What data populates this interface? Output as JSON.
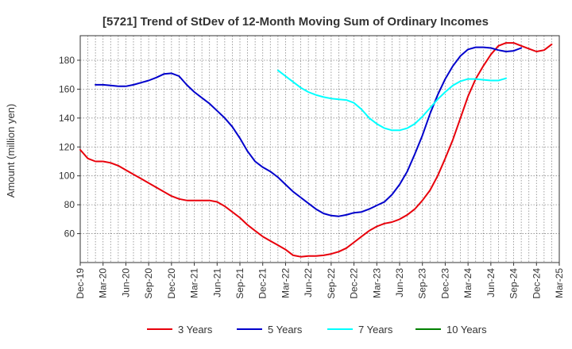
{
  "chart_data": {
    "type": "line",
    "title": "[5721]  Trend of StDev of 12-Month Moving Sum of Ordinary Incomes",
    "xlabel": "",
    "ylabel": "Amount (million yen)",
    "ylim": [
      40,
      197
    ],
    "yticks": [
      60,
      80,
      100,
      120,
      140,
      160,
      180
    ],
    "x_start": "2019-12",
    "xlim_months": [
      0,
      63
    ],
    "xticks": [
      {
        "label": "Dec-19",
        "m": 0
      },
      {
        "label": "Mar-20",
        "m": 3
      },
      {
        "label": "Jun-20",
        "m": 6
      },
      {
        "label": "Sep-20",
        "m": 9
      },
      {
        "label": "Dec-20",
        "m": 12
      },
      {
        "label": "Mar-21",
        "m": 15
      },
      {
        "label": "Jun-21",
        "m": 18
      },
      {
        "label": "Sep-21",
        "m": 21
      },
      {
        "label": "Dec-21",
        "m": 24
      },
      {
        "label": "Mar-22",
        "m": 27
      },
      {
        "label": "Jun-22",
        "m": 30
      },
      {
        "label": "Sep-22",
        "m": 33
      },
      {
        "label": "Dec-22",
        "m": 36
      },
      {
        "label": "Mar-23",
        "m": 39
      },
      {
        "label": "Jun-23",
        "m": 42
      },
      {
        "label": "Sep-23",
        "m": 45
      },
      {
        "label": "Dec-23",
        "m": 48
      },
      {
        "label": "Mar-24",
        "m": 51
      },
      {
        "label": "Jun-24",
        "m": 54
      },
      {
        "label": "Sep-24",
        "m": 57
      },
      {
        "label": "Dec-24",
        "m": 60
      },
      {
        "label": "Mar-25",
        "m": 63
      }
    ],
    "grid": true,
    "legend_position": "bottom",
    "series": [
      {
        "name": "3 Years",
        "color": "#e8000b",
        "start_month": 0,
        "values": [
          118,
          112,
          110,
          110,
          109,
          107,
          104,
          101,
          98,
          95,
          92,
          89,
          86,
          84,
          83,
          83,
          83,
          83,
          82,
          79,
          75,
          71,
          66,
          62,
          58,
          55,
          52,
          49,
          45,
          44,
          44.5,
          44.5,
          45,
          46,
          47.5,
          50,
          54,
          58,
          62,
          65,
          67,
          68,
          70,
          73,
          77,
          83,
          90,
          100,
          112,
          125,
          140,
          155,
          167,
          176,
          184,
          190,
          192,
          192,
          190,
          188,
          186,
          187,
          191
        ]
      },
      {
        "name": "5 Years",
        "color": "#0000cc",
        "start_month": 2,
        "values": [
          163,
          163,
          162.5,
          162,
          162,
          163,
          164.5,
          166,
          168,
          170.5,
          171,
          169,
          163,
          158,
          154,
          150,
          145,
          140,
          134,
          126,
          117,
          110,
          106,
          103,
          99,
          94,
          89,
          85,
          81,
          77,
          74,
          72.5,
          72,
          73,
          74.5,
          75,
          77,
          79.5,
          82,
          87,
          94,
          103,
          115,
          128,
          143,
          156,
          167,
          176,
          183,
          187.5,
          189,
          189,
          188.5,
          187,
          186,
          186.5,
          188.5
        ]
      },
      {
        "name": "7 Years",
        "color": "#00ffff",
        "start_month": 26,
        "values": [
          173,
          169,
          165,
          161,
          158,
          156,
          154.5,
          153.5,
          153,
          152.5,
          150.5,
          146,
          140,
          136,
          133,
          131.5,
          131.5,
          133,
          136,
          141,
          147,
          153,
          158,
          162.5,
          165.5,
          167,
          167,
          166.5,
          166,
          166,
          167.5
        ]
      },
      {
        "name": "10 Years",
        "color": "#008000",
        "start_month": 0,
        "values": []
      }
    ]
  }
}
